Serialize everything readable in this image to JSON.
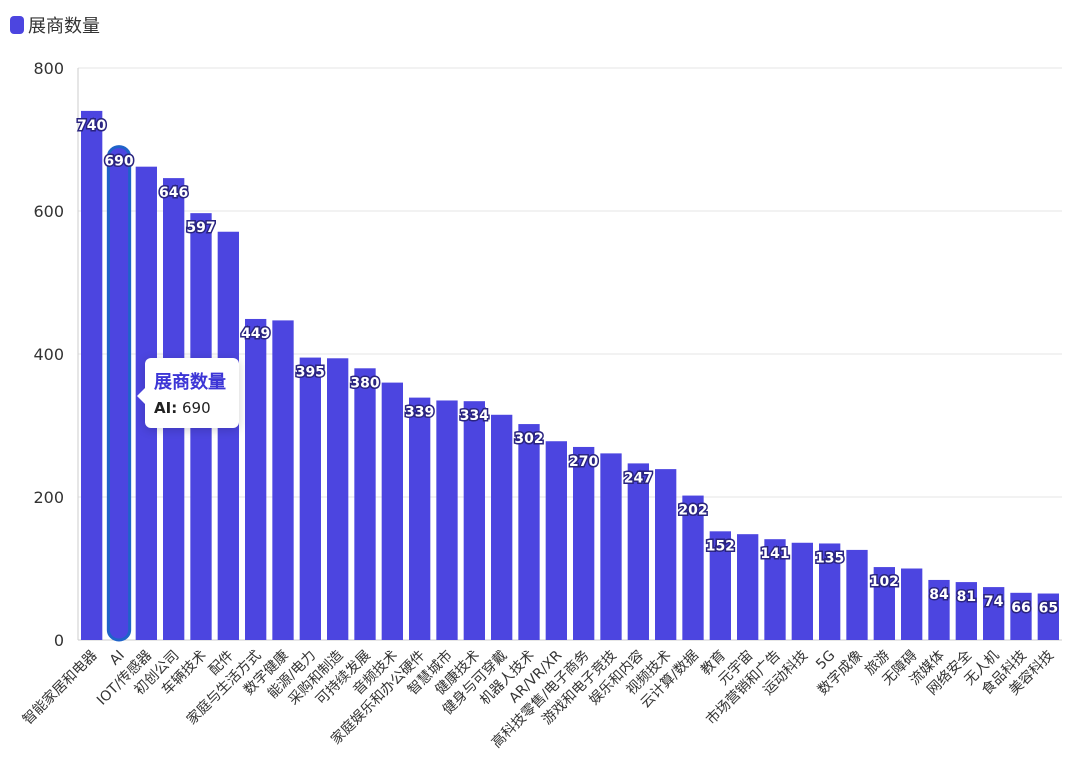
{
  "legend": {
    "label": "展商数量"
  },
  "colors": {
    "bar": "#4c45e0",
    "highlight_stroke": "#1f63c9",
    "axis_text": "#333333",
    "grid": "#e6e6e6",
    "tooltip_title": "#3d36d6"
  },
  "tooltip": {
    "title": "展商数量",
    "key": "AI:",
    "value": "690"
  },
  "chart_data": {
    "type": "bar",
    "title": "",
    "xlabel": "",
    "ylabel": "",
    "ylim": [
      0,
      800
    ],
    "yticks": [
      0,
      200,
      400,
      600,
      800
    ],
    "grid": true,
    "legend_position": "top-left",
    "highlighted_category": "AI",
    "categories": [
      "智能家居和电器",
      "AI",
      "IOT/传感器",
      "初创公司",
      "车辆技术",
      "配件",
      "家庭与生活方式",
      "数字健康",
      "能源/电力",
      "采购和制造",
      "可持续发展",
      "音频技术",
      "家庭娱乐和办公硬件",
      "智慧城市",
      "健康技术",
      "健身与可穿戴",
      "机器人技术",
      "AR/VR/XR",
      "高科技零售/电子商务",
      "游戏和电子竞技",
      "娱乐和内容",
      "视频技术",
      "云计算/数据",
      "教育",
      "元宇宙",
      "市场营销和广告",
      "运动科技",
      "5G",
      "数字成像",
      "旅游",
      "无障碍",
      "流媒体",
      "网络安全",
      "无人机",
      "食品科技",
      "美容科技"
    ],
    "series": [
      {
        "name": "展商数量",
        "values": [
          740,
          690,
          662,
          646,
          597,
          571,
          449,
          447,
          395,
          394,
          380,
          360,
          339,
          335,
          334,
          315,
          302,
          278,
          270,
          261,
          247,
          239,
          202,
          152,
          148,
          141,
          136,
          135,
          126,
          102,
          100,
          84,
          81,
          74,
          66,
          65
        ],
        "labeled": [
          true,
          true,
          false,
          true,
          true,
          false,
          true,
          false,
          true,
          false,
          true,
          false,
          true,
          false,
          true,
          false,
          true,
          false,
          true,
          false,
          true,
          false,
          true,
          true,
          false,
          true,
          false,
          true,
          false,
          true,
          false,
          true,
          true,
          true,
          true,
          true
        ]
      }
    ]
  }
}
